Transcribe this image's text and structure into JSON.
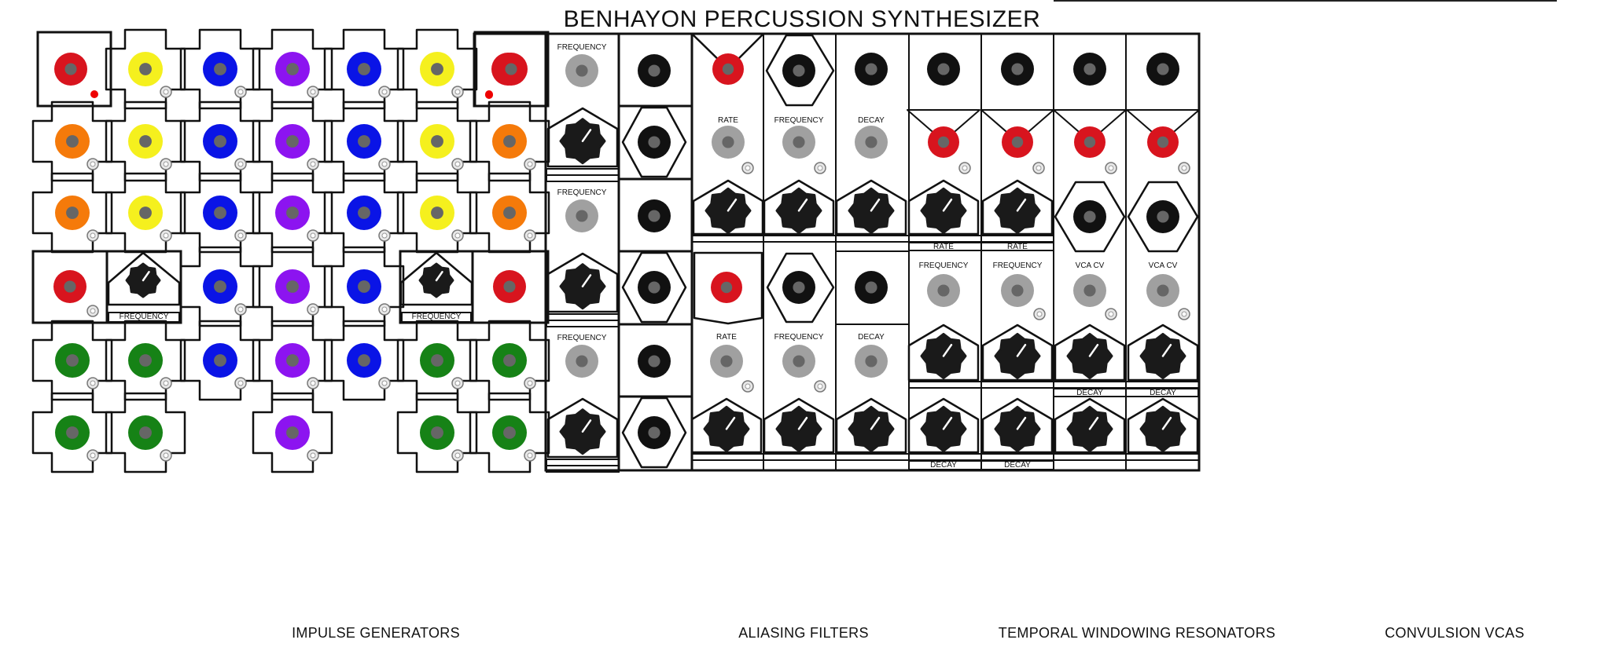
{
  "title": "BENHAYON PERCUSSION SYNTHESIZER",
  "sections": {
    "impulse_generators": "IMPULSE GENERATORS",
    "aliasing_filters": "ALIASING FILTERS",
    "temporal_windowing_resonators": "TEMPORAL WINDOWING RESONATORS",
    "convulsion_vcas": "CONVULSION VCAS"
  },
  "labels": {
    "frequency": "FREQUENCY",
    "rate": "RATE",
    "decay": "DECAY",
    "vca_cv": "VCA CV"
  },
  "colors": {
    "red": "#d8141e",
    "yellow": "#f5f01e",
    "blue": "#0a14e6",
    "purple": "#8c14f0",
    "orange": "#f57a0a",
    "green": "#168216",
    "black": "#111111",
    "gray": "#a0a0a0",
    "center": "#666666"
  },
  "impulse_grid": [
    [
      "big-red",
      "yellow",
      "blue",
      "purple",
      "blue",
      "yellow",
      "big-red"
    ],
    [
      "orange",
      "yellow",
      "blue",
      "purple",
      "blue",
      "yellow",
      "orange"
    ],
    [
      "orange",
      "yellow",
      "blue",
      "purple",
      "blue",
      "yellow",
      "orange"
    ],
    [
      "big-red-knob",
      "",
      "blue",
      "purple",
      "blue",
      "knob-big-red",
      ""
    ],
    [
      "green",
      "green",
      "blue",
      "purple",
      "blue",
      "green",
      "green"
    ],
    [
      "green",
      "green",
      "",
      "purple",
      "",
      "green",
      "green"
    ]
  ]
}
